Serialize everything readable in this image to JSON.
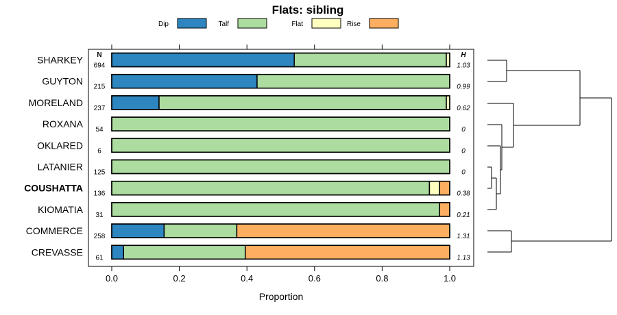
{
  "chart_data": {
    "type": "bar",
    "orientation": "horizontal",
    "stacked": true,
    "title": "Flats: sibling",
    "xlabel": "Proportion",
    "xlim": [
      0,
      1
    ],
    "xticks": [
      "0.0",
      "0.2",
      "0.4",
      "0.6",
      "0.8",
      "1.0"
    ],
    "n_header": "N",
    "h_header": "H",
    "legend": [
      {
        "name": "Dip",
        "color": "#2E86C1"
      },
      {
        "name": "Talf",
        "color": "#ACDCA0"
      },
      {
        "name": "Flat",
        "color": "#FFFFC0"
      },
      {
        "name": "Rise",
        "color": "#FDAE61"
      }
    ],
    "categories": [
      "SHARKEY",
      "GUYTON",
      "MORELAND",
      "ROXANA",
      "OKLARED",
      "LATANIER",
      "COUSHATTA",
      "KIOMATIA",
      "COMMERCE",
      "CREVASSE"
    ],
    "highlight": "COUSHATTA",
    "n": [
      "694",
      "215",
      "237",
      "54",
      "6",
      "125",
      "136",
      "31",
      "258",
      "61"
    ],
    "h": [
      "1.03",
      "0.99",
      "0.62",
      "0",
      "0",
      "0",
      "0.38",
      "0.21",
      "1.31",
      "1.13"
    ],
    "series": [
      {
        "name": "Dip",
        "values": [
          0.54,
          0.43,
          0.14,
          0,
          0,
          0,
          0,
          0,
          0.155,
          0.035
        ]
      },
      {
        "name": "Talf",
        "values": [
          0.45,
          0.57,
          0.85,
          1,
          1,
          1,
          0.94,
          0.97,
          0.215,
          0.36
        ]
      },
      {
        "name": "Flat",
        "values": [
          0.01,
          0,
          0.01,
          0,
          0,
          0,
          0.03,
          0,
          0,
          0
        ]
      },
      {
        "name": "Rise",
        "values": [
          0,
          0,
          0,
          0,
          0,
          0,
          0.03,
          0.03,
          0.63,
          0.605
        ]
      }
    ]
  }
}
